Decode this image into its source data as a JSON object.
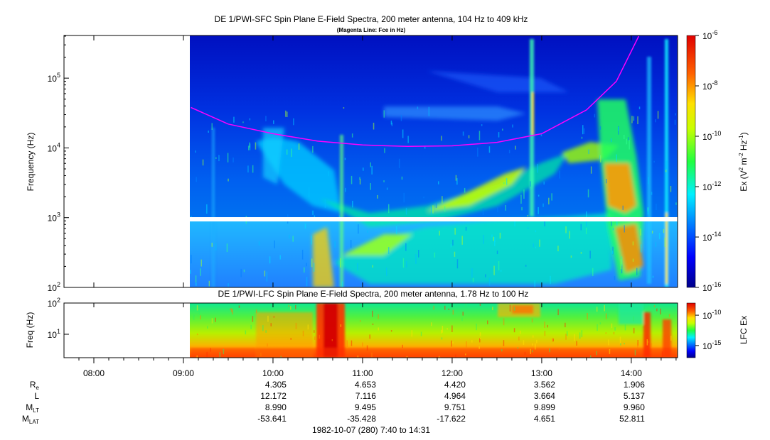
{
  "chart_data": [
    {
      "type": "heatmap",
      "title": "DE 1/PWI-SFC  Spin Plane E-Field Spectra, 200 meter antenna, 104 Hz to 409 kHz",
      "subtitle": "(Magenta Line: Fce in Hz)",
      "ylabel": "Frequency (Hz)",
      "y_scale": "log",
      "ylim": [
        100,
        409000
      ],
      "y_ticks": [
        {
          "value": 100,
          "base": "10",
          "exp": "2"
        },
        {
          "value": 1000,
          "base": "10",
          "exp": "3"
        },
        {
          "value": 10000,
          "base": "10",
          "exp": "4"
        },
        {
          "value": 100000,
          "base": "10",
          "exp": "5"
        }
      ],
      "colorbar": {
        "label_base": "Ex (V",
        "label_exp1": "2",
        "label_mid": " m",
        "label_exp2": "-2",
        "label_mid2": " Hz",
        "label_exp3": "-1",
        "label_end": ")",
        "scale": "log",
        "range": [
          1e-16,
          1e-06
        ],
        "ticks": [
          {
            "value": 1e-06,
            "base": "10",
            "exp": "-6"
          },
          {
            "value": 1e-08,
            "base": "10",
            "exp": "-8"
          },
          {
            "value": 1e-10,
            "base": "10",
            "exp": "-10"
          },
          {
            "value": 1e-12,
            "base": "10",
            "exp": "-12"
          },
          {
            "value": 1e-14,
            "base": "10",
            "exp": "-14"
          },
          {
            "value": 1e-16,
            "base": "10",
            "exp": "-16"
          }
        ]
      },
      "data_start_time": "09:05",
      "gap_frequency_hz": 1000,
      "series": [
        {
          "name": "Fce",
          "color": "#ff00ff",
          "x": [
            "09:05",
            "09:30",
            "10:00",
            "10:30",
            "11:00",
            "11:30",
            "12:00",
            "12:30",
            "13:00",
            "13:30",
            "13:50",
            "14:05"
          ],
          "y": [
            38000,
            22000,
            16000,
            12500,
            11000,
            10500,
            10700,
            12000,
            16000,
            35000,
            90000,
            400000
          ]
        }
      ]
    },
    {
      "type": "heatmap",
      "title": "DE 1/PWI-LFC  Spin Plane E-Field Spectra, 200 meter antenna, 1.78 Hz to 100 Hz",
      "ylabel": "Freq (Hz)",
      "y_scale": "log",
      "ylim": [
        1.78,
        100
      ],
      "y_ticks": [
        {
          "value": 10,
          "base": "10",
          "exp": "1"
        },
        {
          "value": 100,
          "base": "10",
          "exp": "2"
        }
      ],
      "colorbar": {
        "label": "LFC Ex",
        "scale": "log",
        "range": [
          1e-17,
          1e-08
        ],
        "ticks": [
          {
            "value": 1e-10,
            "base": "10",
            "exp": "-10"
          },
          {
            "value": 1e-15,
            "base": "10",
            "exp": "-15"
          }
        ]
      },
      "data_start_time": "09:05"
    }
  ],
  "time_axis": {
    "start": "07:40",
    "end": "14:31",
    "tick_labels": [
      "08:00",
      "09:00",
      "10:00",
      "11:00",
      "12:00",
      "13:00",
      "14:00"
    ]
  },
  "ephemeris": {
    "rows": [
      {
        "name": "R",
        "sub": "e",
        "values": [
          "4.305",
          "4.653",
          "4.420",
          "3.562",
          "1.906"
        ]
      },
      {
        "name": "L",
        "sub": "",
        "values": [
          "12.172",
          "7.116",
          "4.964",
          "3.664",
          "5.137"
        ]
      },
      {
        "name": "M",
        "sub": "LT",
        "values": [
          "8.990",
          "9.495",
          "9.751",
          "9.899",
          "9.960"
        ]
      },
      {
        "name": "M",
        "sub": "LAT",
        "values": [
          "-53.641",
          "-35.428",
          "-17.622",
          "4.651",
          "52.811"
        ]
      }
    ],
    "times": [
      "10:00",
      "11:00",
      "12:00",
      "13:00",
      "14:00"
    ]
  },
  "footer": "1982-10-07 (280) 7:40 to 14:31"
}
